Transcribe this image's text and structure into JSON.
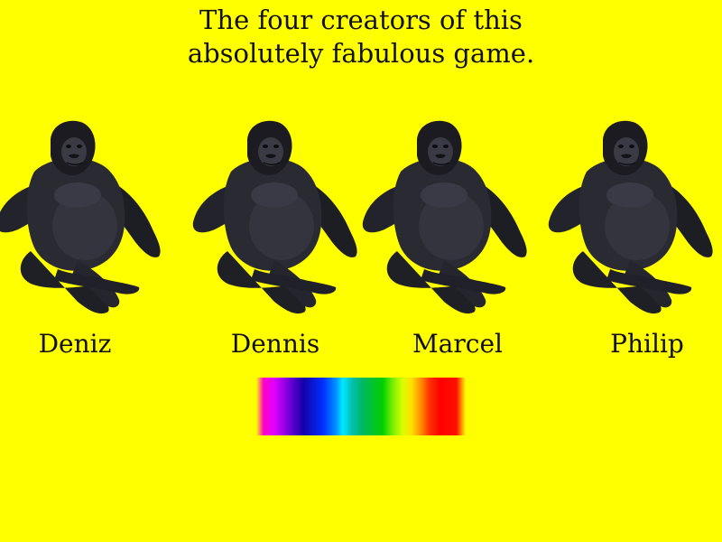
{
  "screen": {
    "title_line1": "The four creators of this",
    "title_line2": "absolutely fabulous game."
  },
  "creators": [
    {
      "name": "Deniz",
      "icon": "gorilla-icon"
    },
    {
      "name": "Dennis",
      "icon": "gorilla-icon"
    },
    {
      "name": "Marcel",
      "icon": "gorilla-icon"
    },
    {
      "name": "Philip",
      "icon": "gorilla-icon"
    }
  ],
  "colors": {
    "background": "#ffff00",
    "text": "#111111",
    "gorilla_fur": "#1c1c22"
  },
  "spectrum": {
    "icon": "rainbow-spectrum-bar"
  }
}
